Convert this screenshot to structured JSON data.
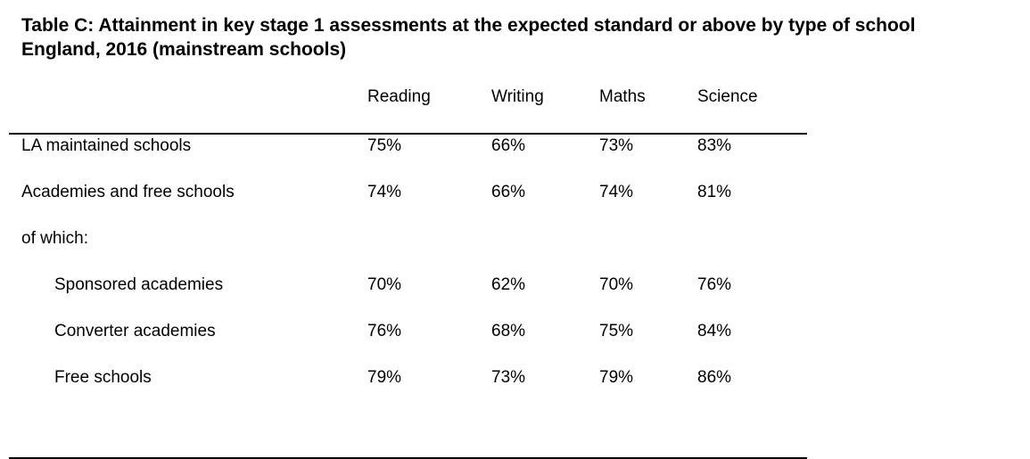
{
  "title": {
    "line1": "Table C: Attainment in key stage 1 assessments at the expected standard or above by type of school",
    "line2": "England, 2016 (mainstream schools)"
  },
  "columns": [
    "Reading",
    "Writing",
    "Maths",
    "Science"
  ],
  "rows": [
    {
      "label": "LA maintained schools",
      "values": [
        "75%",
        "66%",
        "73%",
        "83%"
      ]
    },
    {
      "label": "Academies and free schools",
      "values": [
        "74%",
        "66%",
        "74%",
        "81%"
      ]
    },
    {
      "label": "of which:",
      "values": [
        "",
        "",
        "",
        ""
      ]
    },
    {
      "label": "Sponsored academies",
      "values": [
        "70%",
        "62%",
        "70%",
        "76%"
      ]
    },
    {
      "label": "Converter academies",
      "values": [
        "76%",
        "68%",
        "75%",
        "84%"
      ]
    },
    {
      "label": "Free schools",
      "values": [
        "79%",
        "73%",
        "79%",
        "86%"
      ]
    }
  ]
}
